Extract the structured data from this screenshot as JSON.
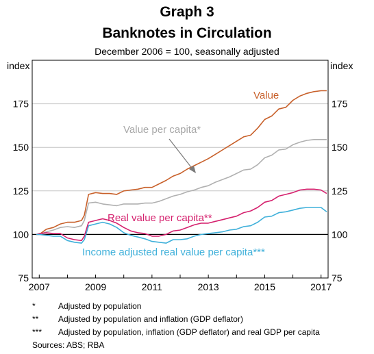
{
  "title": "Graph 3",
  "subtitle": "Banknotes in Circulation",
  "note": "December 2006 = 100, seasonally adjusted",
  "footnotes": [
    {
      "mark": "*",
      "text": "Adjusted by population"
    },
    {
      "mark": "**",
      "text": "Adjusted by population and inflation (GDP deflator)"
    },
    {
      "mark": "***",
      "text": "Adjusted by population, inflation (GDP deflator) and real GDP per capita"
    }
  ],
  "sources": "Sources: ABS; RBA",
  "chart_data": {
    "type": "line",
    "title": "Banknotes in Circulation",
    "ylabel_left": "index",
    "ylabel_right": "index",
    "ylim": [
      75,
      200
    ],
    "yticks": [
      75,
      100,
      125,
      150,
      175
    ],
    "xlim": [
      2006.75,
      2017.25
    ],
    "xticks": [
      "2007",
      "2009",
      "2011",
      "2013",
      "2015",
      "2017"
    ],
    "grid": true,
    "reference_line": 100,
    "series": [
      {
        "name": "Value",
        "color": "#c8602a",
        "x": [
          2006.9,
          2007.0,
          2007.25,
          2007.5,
          2007.75,
          2008.0,
          2008.25,
          2008.5,
          2008.6,
          2008.75,
          2009.0,
          2009.25,
          2009.5,
          2009.75,
          2010.0,
          2010.25,
          2010.5,
          2010.75,
          2011.0,
          2011.25,
          2011.5,
          2011.75,
          2012.0,
          2012.25,
          2012.5,
          2012.75,
          2013.0,
          2013.25,
          2013.5,
          2013.75,
          2014.0,
          2014.25,
          2014.5,
          2014.75,
          2015.0,
          2015.25,
          2015.5,
          2015.75,
          2016.0,
          2016.25,
          2016.5,
          2016.75,
          2017.0,
          2017.2
        ],
        "y": [
          100,
          100,
          103,
          104,
          106,
          107,
          107,
          108,
          111,
          123,
          124,
          123.5,
          123.5,
          123,
          125,
          125.5,
          126,
          127,
          127,
          129,
          131,
          133.5,
          135,
          137.5,
          139.5,
          141.5,
          143.5,
          146,
          148.5,
          151,
          153.5,
          156,
          157,
          161,
          166,
          168,
          172,
          173,
          177,
          179.5,
          181,
          182,
          182.5,
          182.5
        ]
      },
      {
        "name": "Value per capita*",
        "color": "#b0b0b0",
        "x": [
          2006.9,
          2007.0,
          2007.25,
          2007.5,
          2007.75,
          2008.0,
          2008.25,
          2008.5,
          2008.6,
          2008.75,
          2009.0,
          2009.25,
          2009.5,
          2009.75,
          2010.0,
          2010.25,
          2010.5,
          2010.75,
          2011.0,
          2011.25,
          2011.5,
          2011.75,
          2012.0,
          2012.25,
          2012.5,
          2012.75,
          2013.0,
          2013.25,
          2013.5,
          2013.75,
          2014.0,
          2014.25,
          2014.5,
          2014.75,
          2015.0,
          2015.25,
          2015.5,
          2015.75,
          2016.0,
          2016.25,
          2016.5,
          2016.75,
          2017.0,
          2017.2
        ],
        "y": [
          100,
          100,
          101.5,
          102.5,
          104,
          104.5,
          104,
          105,
          108,
          118,
          118.5,
          117.5,
          117,
          116.5,
          117.5,
          117.5,
          117.5,
          118,
          118,
          119,
          120.5,
          122,
          123,
          124.5,
          125.5,
          127,
          128,
          130,
          131.5,
          133,
          135,
          137,
          137.5,
          140,
          144,
          145.5,
          148.5,
          149,
          151.5,
          153,
          154,
          154.5,
          154.5,
          154.5
        ]
      },
      {
        "name": "Real value per capita**",
        "color": "#d5216e",
        "x": [
          2006.9,
          2007.0,
          2007.25,
          2007.5,
          2007.75,
          2008.0,
          2008.25,
          2008.5,
          2008.6,
          2008.75,
          2009.0,
          2009.25,
          2009.5,
          2009.75,
          2010.0,
          2010.25,
          2010.5,
          2010.75,
          2011.0,
          2011.25,
          2011.5,
          2011.75,
          2012.0,
          2012.25,
          2012.5,
          2012.75,
          2013.0,
          2013.25,
          2013.5,
          2013.75,
          2014.0,
          2014.25,
          2014.5,
          2014.75,
          2015.0,
          2015.25,
          2015.5,
          2015.75,
          2016.0,
          2016.25,
          2016.5,
          2016.75,
          2017.0,
          2017.2
        ],
        "y": [
          100,
          100.5,
          101,
          100.5,
          100.5,
          98,
          97,
          96.5,
          99,
          107,
          108,
          109,
          108,
          106.5,
          104,
          102,
          101,
          100.5,
          99,
          99,
          100,
          102,
          102.5,
          104,
          105.5,
          106.5,
          106.5,
          107.5,
          108.5,
          109.5,
          110.5,
          112.5,
          113.5,
          115.5,
          118.5,
          119.5,
          122,
          123,
          124,
          125.5,
          126,
          126,
          125.5,
          123.5
        ]
      },
      {
        "name": "Income adjusted real value per capita***",
        "color": "#3fb0da",
        "x": [
          2006.9,
          2007.0,
          2007.25,
          2007.5,
          2007.75,
          2008.0,
          2008.25,
          2008.5,
          2008.6,
          2008.75,
          2009.0,
          2009.25,
          2009.5,
          2009.75,
          2010.0,
          2010.25,
          2010.5,
          2010.75,
          2011.0,
          2011.25,
          2011.5,
          2011.75,
          2012.0,
          2012.25,
          2012.5,
          2012.75,
          2013.0,
          2013.25,
          2013.5,
          2013.75,
          2014.0,
          2014.25,
          2014.5,
          2014.75,
          2015.0,
          2015.25,
          2015.5,
          2015.75,
          2016.0,
          2016.25,
          2016.5,
          2016.75,
          2017.0,
          2017.2
        ],
        "y": [
          100,
          100,
          99.5,
          99,
          99,
          96.5,
          95.5,
          95,
          97,
          105,
          106,
          107,
          106,
          104,
          101,
          99.5,
          98.5,
          97.5,
          96,
          95.5,
          95,
          97,
          97,
          97.5,
          99,
          100,
          100.5,
          101,
          101.5,
          102.5,
          103,
          104.5,
          105,
          107,
          110,
          110.5,
          112.5,
          113,
          114,
          115,
          115.5,
          115.5,
          115.5,
          113
        ]
      }
    ],
    "annotations": [
      {
        "text": "Value",
        "color": "#c8602a"
      },
      {
        "text": "Value per capita*",
        "color": "#a8a8a8"
      },
      {
        "text": "Real value per capita**",
        "color": "#d5216e"
      },
      {
        "text": "Income adjusted real value per capita***",
        "color": "#3fb0da"
      }
    ]
  }
}
